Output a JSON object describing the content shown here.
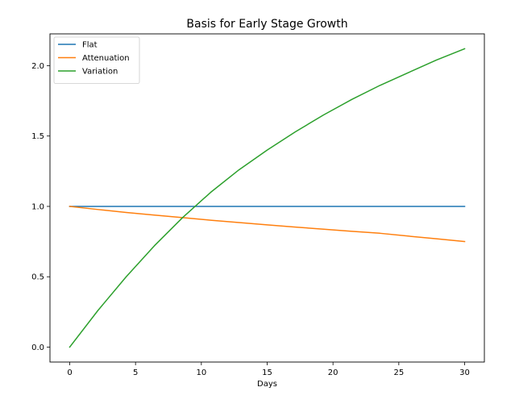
{
  "chart_data": {
    "type": "line",
    "title": "Basis for Early Stage Growth",
    "xlabel": "Days",
    "ylabel": "",
    "xlim": [
      -1.5,
      31.5
    ],
    "ylim": [
      -0.106,
      2.226
    ],
    "xticks": [
      0,
      5,
      10,
      15,
      20,
      25,
      30
    ],
    "xtick_labels": [
      "0",
      "5",
      "10",
      "15",
      "20",
      "25",
      "30"
    ],
    "yticks": [
      0.0,
      0.5,
      1.0,
      1.5,
      2.0
    ],
    "ytick_labels": [
      "0.0",
      "0.5",
      "1.0",
      "1.5",
      "2.0"
    ],
    "grid": false,
    "legend_position": "upper-left",
    "series": [
      {
        "name": "Flat",
        "color": "#1f77b4",
        "x": [
          0,
          2.14,
          4.29,
          6.43,
          8.57,
          10.71,
          12.86,
          15,
          17.14,
          19.29,
          21.43,
          23.57,
          25.71,
          27.86,
          30
        ],
        "y": [
          1.0,
          1.0,
          1.0,
          1.0,
          1.0,
          1.0,
          1.0,
          1.0,
          1.0,
          1.0,
          1.0,
          1.0,
          1.0,
          1.0,
          1.0
        ]
      },
      {
        "name": "Attenuation",
        "color": "#ff7f0e",
        "x": [
          0,
          2.14,
          4.29,
          6.43,
          8.57,
          10.71,
          12.86,
          15,
          17.14,
          19.29,
          21.43,
          23.57,
          25.71,
          27.86,
          30
        ],
        "y": [
          1.0,
          0.978,
          0.957,
          0.938,
          0.92,
          0.902,
          0.885,
          0.869,
          0.853,
          0.838,
          0.823,
          0.809,
          0.789,
          0.77,
          0.75
        ]
      },
      {
        "name": "Variation",
        "color": "#2ca02c",
        "x": [
          0,
          2.14,
          4.29,
          6.43,
          8.57,
          10.71,
          12.86,
          15,
          17.14,
          19.29,
          21.43,
          23.57,
          25.71,
          27.86,
          30
        ],
        "y": [
          0.0,
          0.26,
          0.5,
          0.72,
          0.92,
          1.1,
          1.26,
          1.4,
          1.53,
          1.65,
          1.76,
          1.86,
          1.95,
          2.04,
          2.12
        ]
      }
    ]
  }
}
